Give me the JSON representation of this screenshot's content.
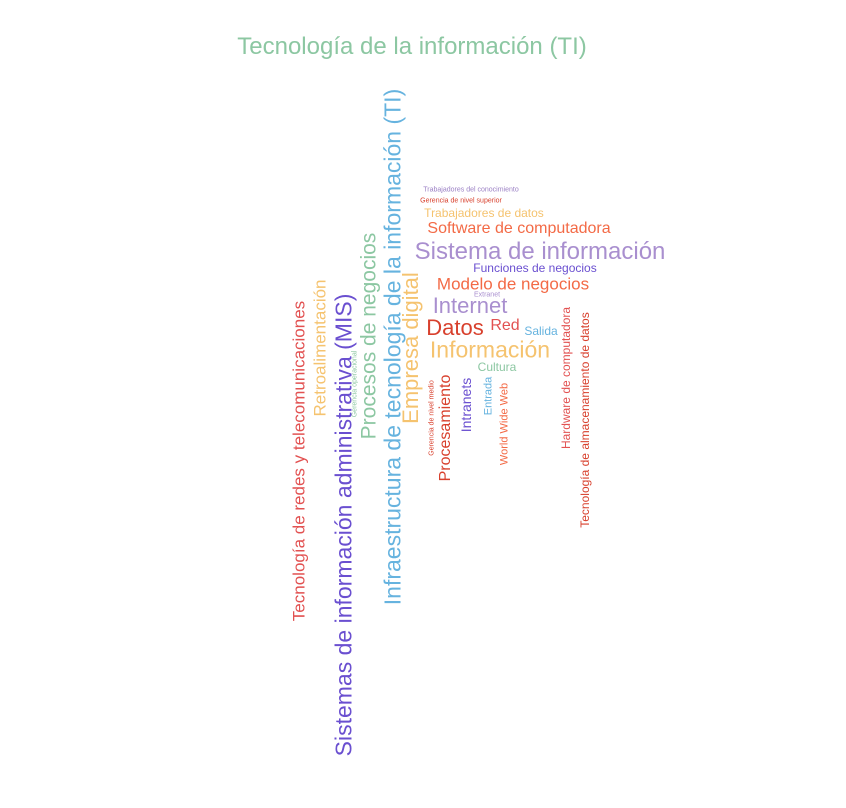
{
  "cloud": {
    "words": [
      {
        "text": "Tecnología de la información (TI)",
        "color": "#8cc7a2"
      },
      {
        "text": "Infraestructura de tecnología de la información (TI)",
        "color": "#66b3df"
      },
      {
        "text": "Sistemas de información administrativa (MIS)",
        "color": "#6a4fd0"
      },
      {
        "text": "Tecnología de redes y telecomunicaciones",
        "color": "#e25151"
      },
      {
        "text": "Procesos de negocios",
        "color": "#8cc7a2"
      },
      {
        "text": "Retroalimentación",
        "color": "#f5c36f"
      },
      {
        "text": "Gerencia operacional",
        "color": "#8cc7a2"
      },
      {
        "text": "Empresa digital",
        "color": "#f5c36f"
      },
      {
        "text": "Trabajadores del conocimiento",
        "color": "#9a7fc4"
      },
      {
        "text": "Gerencia de nivel superior",
        "color": "#d8402d"
      },
      {
        "text": "Trabajadores de datos",
        "color": "#f5c36f"
      },
      {
        "text": "Software de computadora",
        "color": "#f36a46"
      },
      {
        "text": "Sistema de información",
        "color": "#a98fcf"
      },
      {
        "text": "Funciones de negocios",
        "color": "#6a4fd0"
      },
      {
        "text": "Modelo de negocios",
        "color": "#f36a46"
      },
      {
        "text": "Extranet",
        "color": "#a98fcf"
      },
      {
        "text": "Internet",
        "color": "#a98fcf"
      },
      {
        "text": "Datos",
        "color": "#d8402d"
      },
      {
        "text": "Red",
        "color": "#e25151"
      },
      {
        "text": "Salida",
        "color": "#66b3df"
      },
      {
        "text": "Información",
        "color": "#f5c36f"
      },
      {
        "text": "Cultura",
        "color": "#8cc7a2"
      },
      {
        "text": "Gerencia de nivel medio",
        "color": "#d8402d"
      },
      {
        "text": "Procesamiento",
        "color": "#d8402d"
      },
      {
        "text": "Intranets",
        "color": "#6a4fd0"
      },
      {
        "text": "Entrada",
        "color": "#66b3df"
      },
      {
        "text": "World Wide Web",
        "color": "#f36a46"
      },
      {
        "text": "Hardware de computadora",
        "color": "#e25151"
      },
      {
        "text": "Tecnología de almacenamiento de datos",
        "color": "#d8402d"
      }
    ]
  }
}
